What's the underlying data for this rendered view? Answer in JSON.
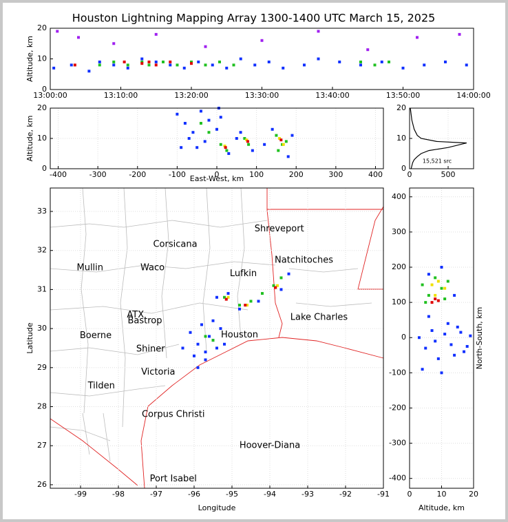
{
  "chart_data": [
    {
      "type": "scatter",
      "title": "Houston Lightning Mapping Array 1300-1400 UTC March 15, 2025",
      "ylabel": "Altitude, km",
      "xlim": [
        0,
        60
      ],
      "xticks": [
        {
          "value": 0,
          "label": "13:00:00"
        },
        {
          "value": 10,
          "label": "13:10:00"
        },
        {
          "value": 20,
          "label": "13:20:00"
        },
        {
          "value": 30,
          "label": "13:30:00"
        },
        {
          "value": 40,
          "label": "13:40:00"
        },
        {
          "value": 50,
          "label": "13:50:00"
        },
        {
          "value": 60,
          "label": "14:00:00"
        }
      ],
      "ylim": [
        0,
        20
      ],
      "yticks": [
        0,
        10,
        20
      ],
      "grid": false,
      "series": [
        {
          "color": "#a020f0",
          "x": [
            1,
            4,
            9,
            15,
            22,
            30,
            38,
            45,
            52,
            58
          ],
          "y": [
            19,
            17,
            15,
            18,
            14,
            16,
            19,
            13,
            17,
            18
          ]
        },
        {
          "color": "#1030ff",
          "x": [
            0.5,
            3,
            5.5,
            7,
            9,
            11,
            13,
            15,
            17,
            19,
            21,
            23,
            25,
            27,
            29,
            31,
            33,
            36,
            38,
            41,
            44,
            47,
            50,
            53,
            56,
            59
          ],
          "y": [
            7,
            8,
            6,
            9,
            8,
            7,
            10,
            9,
            8,
            7,
            9,
            8,
            7,
            10,
            8,
            9,
            7,
            8,
            10,
            9,
            8,
            9,
            7,
            8,
            9,
            8
          ]
        },
        {
          "color": "#20c020",
          "x": [
            7,
            9,
            11,
            13,
            14,
            16,
            18,
            20,
            22,
            24,
            26,
            44,
            46,
            48
          ],
          "y": [
            8,
            9,
            8,
            9,
            8,
            9,
            8,
            9,
            8,
            9,
            8,
            9,
            8,
            9
          ]
        },
        {
          "color": "#e00000",
          "x": [
            3.5,
            10.5,
            13,
            14,
            15,
            17,
            20
          ],
          "y": [
            8,
            9,
            8.5,
            9,
            8,
            9,
            8.5
          ]
        }
      ]
    },
    {
      "type": "scatter",
      "xlabel": "East-West, km",
      "ylabel": "Altitude, km",
      "xlim": [
        -420,
        420
      ],
      "xticks": [
        -400,
        -300,
        -200,
        -100,
        0,
        100,
        200,
        300,
        400
      ],
      "ylim": [
        0,
        20
      ],
      "yticks": [
        0,
        10,
        20
      ],
      "grid": true,
      "series": [
        {
          "color": "#1030ff",
          "x": [
            -100,
            -80,
            -60,
            -40,
            -20,
            0,
            -70,
            -30,
            10,
            -50,
            30,
            60,
            90,
            140,
            180,
            190,
            -90,
            5,
            50,
            120
          ],
          "y": [
            18,
            15,
            12,
            19,
            16,
            13,
            10,
            9,
            17,
            7,
            5,
            12,
            6,
            13,
            4,
            11,
            7,
            20,
            10,
            8
          ]
        },
        {
          "color": "#20c020",
          "x": [
            -40,
            -20,
            10,
            25,
            70,
            80,
            150,
            165,
            175,
            155
          ],
          "y": [
            15,
            12,
            8,
            6,
            10,
            8,
            11,
            8,
            9,
            6
          ]
        },
        {
          "color": "#f0e000",
          "x": [
            20,
            75,
            158,
            168
          ],
          "y": [
            7.5,
            9.5,
            10,
            8
          ]
        },
        {
          "color": "#e00000",
          "x": [
            22,
            78,
            162
          ],
          "y": [
            7,
            9,
            9.5
          ]
        }
      ]
    },
    {
      "type": "line",
      "annotation": "15,521 src",
      "xlim": [
        0,
        830
      ],
      "xticks": [
        0,
        500
      ],
      "ylim": [
        0,
        20
      ],
      "yticks": [
        0,
        10,
        20
      ],
      "grid": true,
      "series": [
        {
          "color": "#000000",
          "x": [
            20,
            30,
            40,
            60,
            100,
            150,
            250,
            500,
            740,
            350,
            150,
            100,
            80,
            60,
            50,
            40,
            30,
            25,
            20,
            15,
            10
          ],
          "y": [
            0,
            1,
            2,
            3,
            4,
            5,
            6,
            7,
            8.5,
            9,
            10,
            11,
            12,
            13,
            14,
            15,
            16,
            17,
            18,
            19,
            20
          ]
        }
      ]
    },
    {
      "type": "scatter",
      "xlabel": "Longitude",
      "ylabel": "Latitude",
      "xlim": [
        -99.8,
        -91
      ],
      "xticks": [
        -99,
        -98,
        -97,
        -96,
        -95,
        -94,
        -93,
        -92,
        -91
      ],
      "ylim": [
        25.91,
        33.6
      ],
      "yticks": [
        26,
        27,
        28,
        29,
        30,
        31,
        32,
        33
      ],
      "grid": true,
      "annotations": [
        {
          "text": "Shreveport",
          "x": -93.75,
          "y": 32.55,
          "color": "#000000"
        },
        {
          "text": "Corsicana",
          "x": -96.5,
          "y": 32.15,
          "color": "#000000"
        },
        {
          "text": "Natchitoches",
          "x": -93.1,
          "y": 31.75,
          "color": "#000000"
        },
        {
          "text": "Mullin",
          "x": -98.75,
          "y": 31.55,
          "color": "#f08040"
        },
        {
          "text": "Waco",
          "x": -97.1,
          "y": 31.55,
          "color": "#000000"
        },
        {
          "text": "Lufkin",
          "x": -94.7,
          "y": 31.4,
          "color": "#000000"
        },
        {
          "text": "ATX",
          "x": -97.55,
          "y": 30.35,
          "color": "#f09020"
        },
        {
          "text": "Bastrop",
          "x": -97.3,
          "y": 30.2,
          "color": "#000000"
        },
        {
          "text": "Lake Charles",
          "x": -92.7,
          "y": 30.28,
          "color": "#000000"
        },
        {
          "text": "Boerne",
          "x": -98.6,
          "y": 29.82,
          "color": "#000000"
        },
        {
          "text": "Houston",
          "x": -94.8,
          "y": 29.83,
          "color": "#f09020"
        },
        {
          "text": "Shiner",
          "x": -97.15,
          "y": 29.47,
          "color": "#000000"
        },
        {
          "text": "Victoria",
          "x": -96.95,
          "y": 28.88,
          "color": "#000000"
        },
        {
          "text": "Tilden",
          "x": -98.45,
          "y": 28.53,
          "color": "#000000"
        },
        {
          "text": "Corpus Christi",
          "x": -96.55,
          "y": 27.8,
          "color": "#000000"
        },
        {
          "text": "Hoover-Diana",
          "x": -94.0,
          "y": 27.0,
          "color": "#1010e0"
        },
        {
          "text": "Port Isabel",
          "x": -96.55,
          "y": 26.15,
          "color": "#000000"
        }
      ],
      "series": [
        {
          "color": "#1030ff",
          "x": [
            -96.1,
            -95.9,
            -95.7,
            -95.5,
            -95.3,
            -95.8,
            -95.6,
            -95.4,
            -96.0,
            -95.7,
            -95.5,
            -95.2,
            -95.4,
            -95.1,
            -94.8,
            -94.3,
            -93.7,
            -93.5,
            -95.9,
            -96.3
          ],
          "y": [
            29.9,
            29.6,
            29.4,
            29.7,
            30.0,
            30.1,
            29.8,
            29.5,
            29.3,
            29.2,
            30.2,
            29.6,
            30.8,
            30.9,
            30.5,
            30.7,
            31.0,
            31.4,
            29.0,
            29.5
          ]
        },
        {
          "color": "#20c020",
          "x": [
            -95.2,
            -94.8,
            -94.5,
            -94.2,
            -93.9,
            -93.7,
            -95.7,
            -95.5
          ],
          "y": [
            30.8,
            30.6,
            30.7,
            30.9,
            31.1,
            31.3,
            29.8,
            29.7
          ]
        },
        {
          "color": "#f0e000",
          "x": [
            -95.1,
            -94.6,
            -93.8
          ],
          "y": [
            30.8,
            30.6,
            31.1
          ]
        },
        {
          "color": "#e00000",
          "x": [
            -95.15,
            -94.65,
            -93.85
          ],
          "y": [
            30.75,
            30.6,
            31.05
          ]
        }
      ]
    },
    {
      "type": "scatter",
      "xlabel": "Altitude, km",
      "ylabel": "North-South, km",
      "xlim": [
        0,
        20
      ],
      "xticks": [
        0,
        10,
        20
      ],
      "ylim": [
        -428,
        425
      ],
      "yticks": [
        -400,
        -300,
        -200,
        -100,
        0,
        100,
        200,
        300,
        400
      ],
      "grid": true,
      "series": [
        {
          "color": "#1030ff",
          "x": [
            3,
            5,
            7,
            9,
            11,
            13,
            15,
            17,
            19,
            4,
            6,
            8,
            10,
            12,
            14,
            16,
            18,
            6,
            10,
            14
          ],
          "y": [
            0,
            -30,
            20,
            -60,
            10,
            -20,
            30,
            -40,
            5,
            -90,
            60,
            -10,
            -100,
            40,
            -50,
            15,
            -25,
            180,
            200,
            120
          ]
        },
        {
          "color": "#20c020",
          "x": [
            4,
            6,
            8,
            10,
            12,
            5,
            11
          ],
          "y": [
            150,
            120,
            170,
            140,
            160,
            100,
            110
          ]
        },
        {
          "color": "#f0e000",
          "x": [
            7,
            9,
            11,
            8
          ],
          "y": [
            150,
            160,
            140,
            120
          ]
        },
        {
          "color": "#e00000",
          "x": [
            7,
            8,
            9
          ],
          "y": [
            100,
            110,
            105
          ]
        }
      ]
    }
  ]
}
